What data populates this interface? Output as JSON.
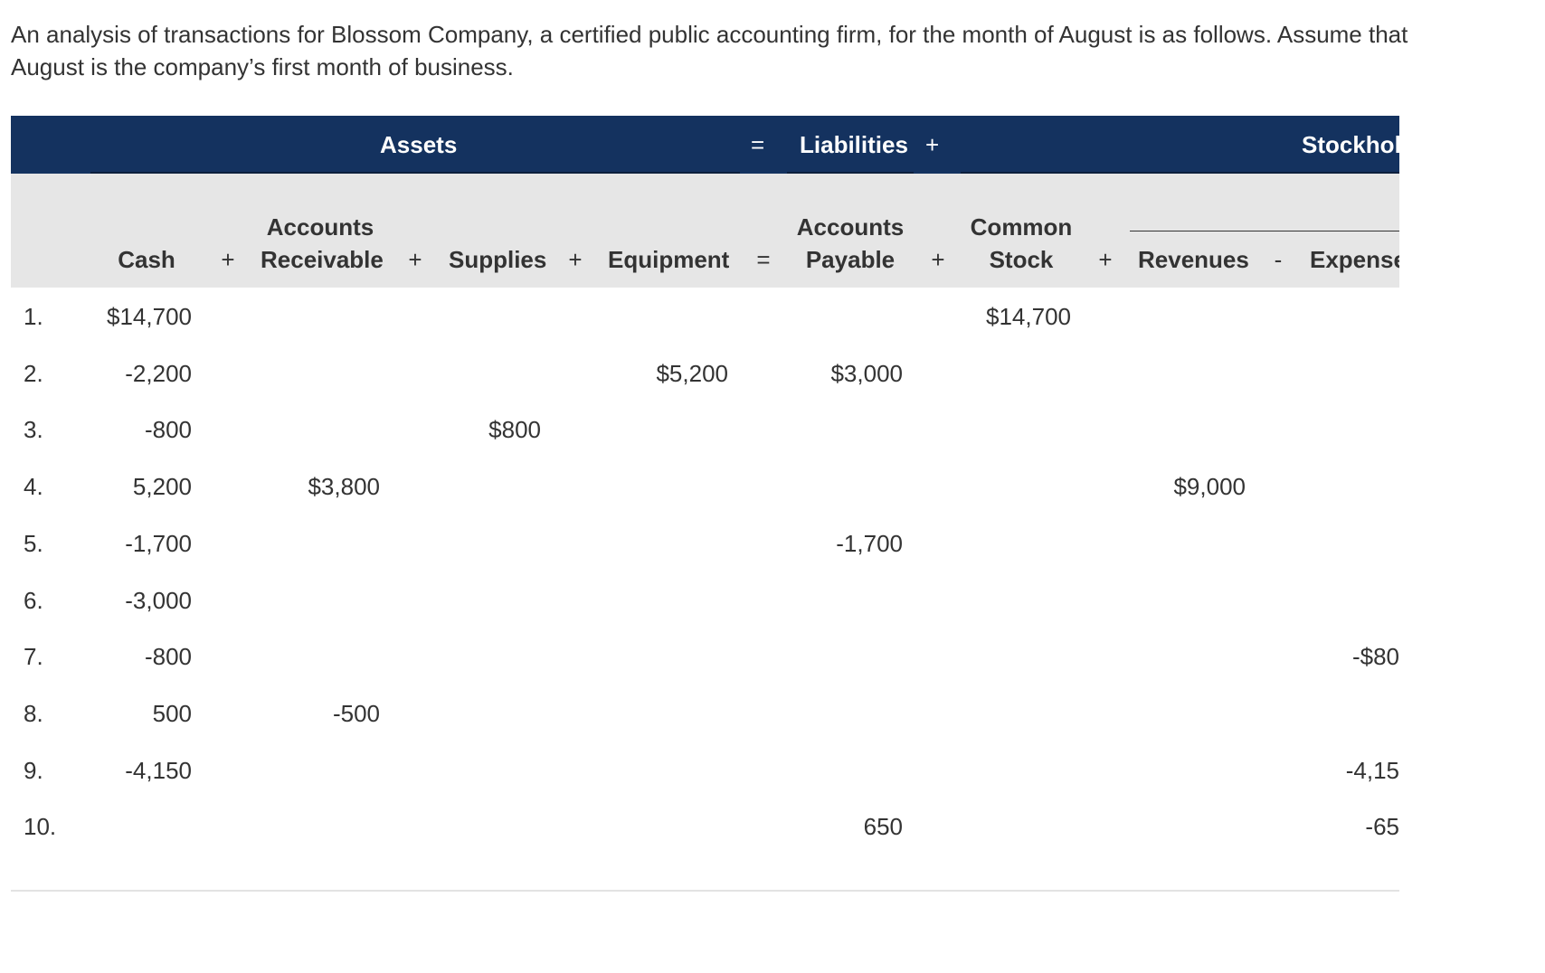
{
  "intro": {
    "line1": "An analysis of transactions for Blossom Company, a certified public accounting firm, for the month of August is as follows. Assume that",
    "line2": "August is the company’s first month of business."
  },
  "band": {
    "assets": "Assets",
    "equals": "=",
    "liabilities": "Liabilities",
    "plus": "+",
    "stockholders": "Stockhol"
  },
  "headers": {
    "cash": "Cash",
    "ar_line1": "Accounts",
    "ar_line2": "Receivable",
    "supplies": "Supplies",
    "equipment": "Equipment",
    "ap_line1": "Accounts",
    "ap_line2": "Payable",
    "cs_line1": "Common",
    "cs_line2": "Stock",
    "revenues": "Revenues",
    "expenses": "Expense"
  },
  "operators": {
    "plus1": "+",
    "plus2": "+",
    "plus3": "+",
    "eq": "=",
    "plus4": "+",
    "plus5": "+",
    "minus": "-"
  },
  "rows": [
    {
      "num": "1.",
      "cash": "$14,700",
      "ar": "",
      "supplies": "",
      "equipment": "",
      "ap": "",
      "cs": "$14,700",
      "rev": "",
      "exp": ""
    },
    {
      "num": "2.",
      "cash": "-2,200",
      "ar": "",
      "supplies": "",
      "equipment": "$5,200",
      "ap": "$3,000",
      "cs": "",
      "rev": "",
      "exp": ""
    },
    {
      "num": "3.",
      "cash": "-800",
      "ar": "",
      "supplies": "$800",
      "equipment": "",
      "ap": "",
      "cs": "",
      "rev": "",
      "exp": ""
    },
    {
      "num": "4.",
      "cash": "5,200",
      "ar": "$3,800",
      "supplies": "",
      "equipment": "",
      "ap": "",
      "cs": "",
      "rev": "$9,000",
      "exp": ""
    },
    {
      "num": "5.",
      "cash": "-1,700",
      "ar": "",
      "supplies": "",
      "equipment": "",
      "ap": "-1,700",
      "cs": "",
      "rev": "",
      "exp": ""
    },
    {
      "num": "6.",
      "cash": "-3,000",
      "ar": "",
      "supplies": "",
      "equipment": "",
      "ap": "",
      "cs": "",
      "rev": "",
      "exp": ""
    },
    {
      "num": "7.",
      "cash": "-800",
      "ar": "",
      "supplies": "",
      "equipment": "",
      "ap": "",
      "cs": "",
      "rev": "",
      "exp": "-$80"
    },
    {
      "num": "8.",
      "cash": "500",
      "ar": "-500",
      "supplies": "",
      "equipment": "",
      "ap": "",
      "cs": "",
      "rev": "",
      "exp": ""
    },
    {
      "num": "9.",
      "cash": "-4,150",
      "ar": "",
      "supplies": "",
      "equipment": "",
      "ap": "",
      "cs": "",
      "rev": "",
      "exp": "-4,15"
    },
    {
      "num": "10.",
      "cash": "",
      "ar": "",
      "supplies": "",
      "equipment": "",
      "ap": "650",
      "cs": "",
      "rev": "",
      "exp": "-65"
    }
  ],
  "colors": {
    "band": "#14325f",
    "subhead": "#e6e6e6",
    "text": "#333333"
  }
}
